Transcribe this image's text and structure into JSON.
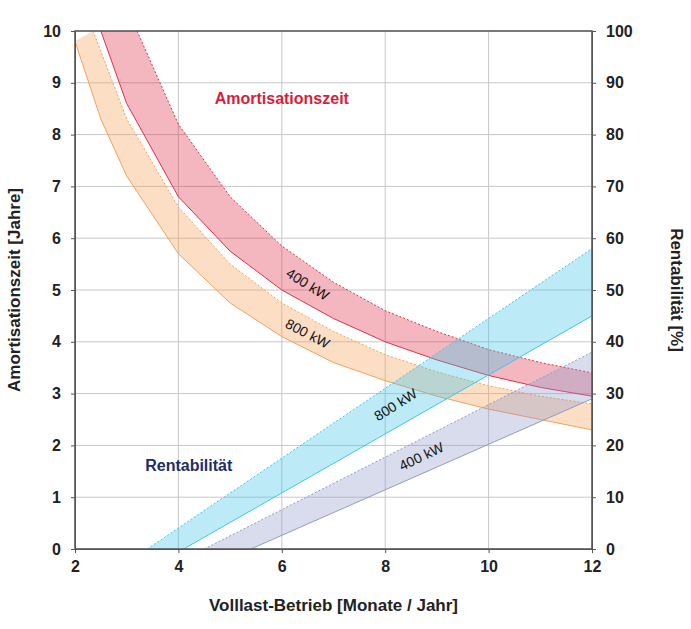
{
  "chart_data": {
    "type": "band",
    "xlabel": "Volllast-Betrieb [Monate / Jahr]",
    "ylabel": "Amortisationszeit [Jahre]",
    "y2label": "Rentabilität [%]",
    "xlim": [
      2,
      12
    ],
    "ylim": [
      0,
      10
    ],
    "y2lim": [
      0,
      100
    ],
    "xticks": [
      2,
      4,
      6,
      8,
      10,
      12
    ],
    "yticks": [
      0,
      1,
      2,
      3,
      4,
      5,
      6,
      7,
      8,
      9,
      10
    ],
    "y2ticks": [
      0,
      10,
      20,
      30,
      40,
      50,
      60,
      70,
      80,
      90,
      100
    ],
    "grid": true,
    "annotations": [
      {
        "text": "Amortisationszeit",
        "color": "#d81e3a"
      },
      {
        "text": "Rentabilität",
        "color": "#1f2d6b"
      }
    ],
    "series": [
      {
        "name": "400 kW",
        "color": "#e0304a",
        "upper_x": [
          3.2,
          4,
          5,
          6,
          7,
          8,
          9,
          10,
          11,
          12
        ],
        "upper": [
          10,
          8.2,
          6.8,
          5.85,
          5.15,
          4.6,
          4.2,
          3.85,
          3.6,
          3.4
        ],
        "lower_x": [
          2.5,
          3,
          4,
          5,
          6,
          7,
          8,
          9,
          10,
          11,
          12
        ],
        "lower": [
          10,
          8.6,
          6.8,
          5.75,
          5.0,
          4.45,
          4.0,
          3.65,
          3.35,
          3.12,
          2.95
        ]
      },
      {
        "name": "800 kW",
        "color": "#f5a05a",
        "upper_x": [
          2.35,
          3,
          4,
          5,
          6,
          7,
          8,
          9,
          10,
          11,
          12
        ],
        "upper": [
          10,
          8.3,
          6.6,
          5.5,
          4.75,
          4.2,
          3.75,
          3.42,
          3.15,
          2.95,
          2.8
        ],
        "lower_x": [
          2,
          2.5,
          3,
          4,
          5,
          6,
          7,
          8,
          9,
          10,
          11,
          12
        ],
        "lower": [
          9.8,
          8.3,
          7.2,
          5.7,
          4.75,
          4.1,
          3.6,
          3.25,
          2.95,
          2.7,
          2.5,
          2.3
        ]
      },
      {
        "name": "800 kW",
        "color": "#3ec6e8",
        "axis": "y2",
        "upper_x": [
          3.4,
          12
        ],
        "upper": [
          0,
          58
        ],
        "lower_x": [
          4.1,
          12
        ],
        "lower": [
          0,
          45
        ]
      },
      {
        "name": "400 kW",
        "color": "#8f9cc8",
        "axis": "y2",
        "upper_x": [
          4.5,
          12
        ],
        "upper": [
          0,
          38
        ],
        "lower_x": [
          5.4,
          12
        ],
        "lower": [
          0,
          29
        ]
      }
    ]
  }
}
